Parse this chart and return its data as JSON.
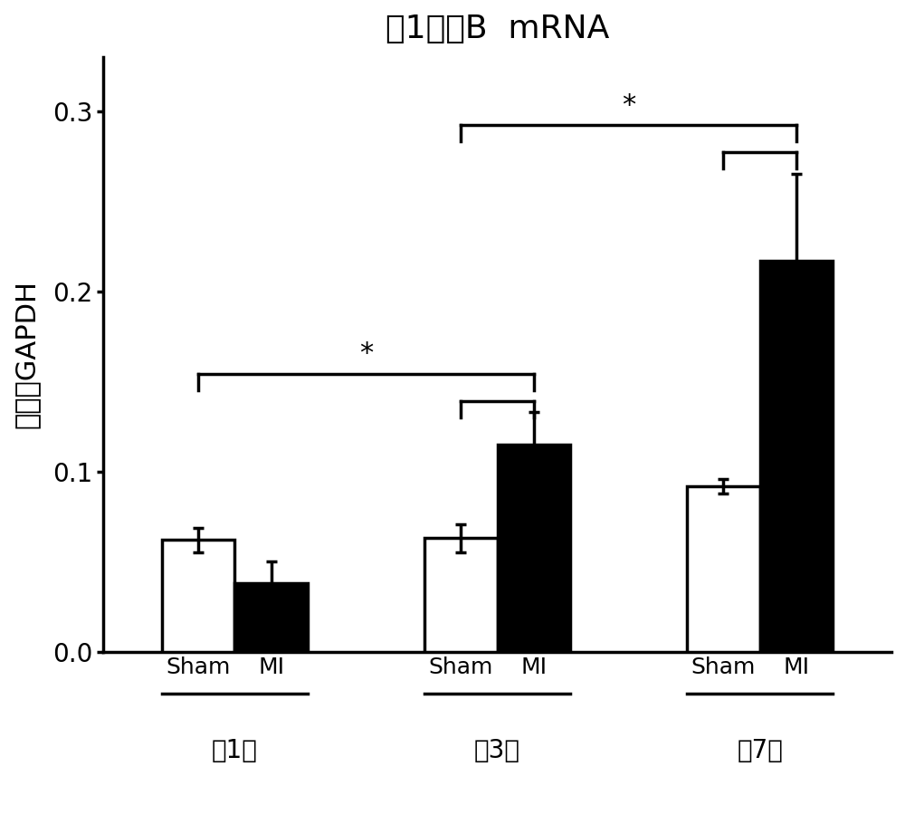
{
  "title": "頇1粒酶B  mRNA",
  "ylabel": "相对于GAPDH",
  "groups": [
    "第1天",
    "第3天",
    "第7天"
  ],
  "bar_labels": [
    "Sham",
    "MI"
  ],
  "bar_values": [
    [
      0.062,
      0.038
    ],
    [
      0.063,
      0.115
    ],
    [
      0.092,
      0.217
    ]
  ],
  "bar_errors": [
    [
      0.007,
      0.012
    ],
    [
      0.008,
      0.018
    ],
    [
      0.004,
      0.048
    ]
  ],
  "bar_colors": [
    "white",
    "black"
  ],
  "bar_edgecolor": "black",
  "ylim": [
    0.0,
    0.33
  ],
  "yticks": [
    0.0,
    0.1,
    0.2,
    0.3
  ],
  "ytick_labels": [
    "0.0",
    "0.1",
    "0.2",
    "0.3"
  ],
  "bar_width": 0.32,
  "group_centers": [
    0.0,
    1.15,
    2.3
  ],
  "background_color": "white",
  "title_fontsize": 26,
  "axis_label_fontsize": 22,
  "tick_fontsize": 20,
  "group_label_fontsize": 20,
  "bar_label_fontsize": 18,
  "sig_fontsize": 22,
  "linewidth": 2.5
}
